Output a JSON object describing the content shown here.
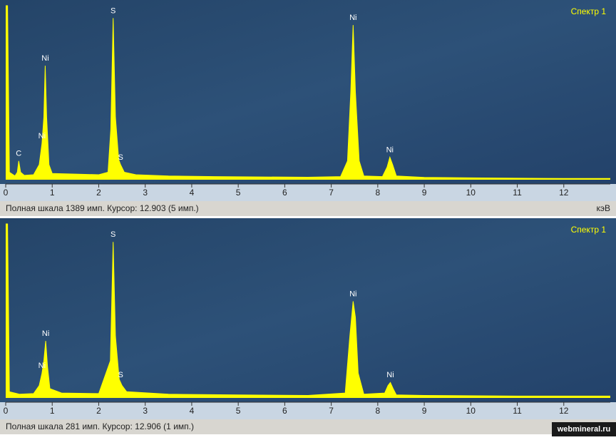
{
  "chart_data": [
    {
      "type": "area",
      "legend_label": "Спектр 1",
      "status": "Полная шкала 1389 имп. Курсор: 12.903  (5 имп.)",
      "xlabel": "кэВ",
      "color": "#ffff00",
      "x": [
        0,
        0.04,
        0.08,
        0.2,
        0.25,
        0.28,
        0.32,
        0.4,
        0.6,
        0.72,
        0.78,
        0.82,
        0.85,
        0.88,
        0.93,
        1.0,
        1.5,
        2.0,
        2.2,
        2.26,
        2.31,
        2.36,
        2.43,
        2.47,
        2.55,
        2.8,
        3.5,
        4.5,
        5.5,
        6.5,
        7.2,
        7.35,
        7.42,
        7.47,
        7.52,
        7.6,
        7.7,
        8.1,
        8.2,
        8.26,
        8.32,
        8.4,
        9,
        10,
        11,
        12,
        13
      ],
      "values": [
        1389,
        1389,
        60,
        30,
        60,
        150,
        60,
        35,
        40,
        120,
        290,
        500,
        910,
        500,
        120,
        50,
        45,
        40,
        60,
        400,
        1290,
        500,
        160,
        120,
        60,
        40,
        30,
        25,
        22,
        20,
        25,
        150,
        700,
        1235,
        700,
        150,
        30,
        25,
        100,
        180,
        120,
        30,
        18,
        15,
        12,
        10,
        10
      ],
      "annotations": [
        {
          "label": "C",
          "x": 0.28
        },
        {
          "label": "Ni",
          "x": 0.78
        },
        {
          "label": "Ni",
          "x": 0.85
        },
        {
          "label": "S",
          "x": 2.31
        },
        {
          "label": "S",
          "x": 2.47
        },
        {
          "label": "Ni",
          "x": 7.47
        },
        {
          "label": "Ni",
          "x": 8.26
        }
      ],
      "xlim": [
        0,
        13
      ],
      "ylim": [
        0,
        1389
      ],
      "xticks": [
        0,
        1,
        2,
        3,
        4,
        5,
        6,
        7,
        8,
        9,
        10,
        11,
        12
      ]
    },
    {
      "type": "area",
      "legend_label": "Спектр 1",
      "status": "Полная шкала 281 имп. Курсор: 12.906  (1 имп.)",
      "xlabel": "кэВ",
      "color": "#ffff00",
      "x": [
        0,
        0.04,
        0.08,
        0.3,
        0.6,
        0.72,
        0.78,
        0.82,
        0.86,
        0.9,
        0.95,
        1.2,
        2.0,
        2.25,
        2.31,
        2.36,
        2.44,
        2.5,
        2.6,
        3.5,
        5,
        6.5,
        7.3,
        7.4,
        7.47,
        7.52,
        7.58,
        7.7,
        8.15,
        8.22,
        8.27,
        8.33,
        8.4,
        9,
        11,
        13
      ],
      "values": [
        281,
        281,
        10,
        6,
        7,
        20,
        40,
        60,
        92,
        50,
        15,
        8,
        7,
        60,
        252,
        100,
        30,
        20,
        10,
        6,
        5,
        4,
        8,
        100,
        156,
        130,
        40,
        6,
        8,
        20,
        25,
        15,
        5,
        4,
        3,
        3
      ],
      "annotations": [
        {
          "label": "Ni",
          "x": 0.78
        },
        {
          "label": "Ni",
          "x": 0.86
        },
        {
          "label": "S",
          "x": 2.31
        },
        {
          "label": "S",
          "x": 2.47
        },
        {
          "label": "Ni",
          "x": 7.47
        },
        {
          "label": "Ni",
          "x": 8.27
        }
      ],
      "xlim": [
        0,
        13
      ],
      "ylim": [
        0,
        281
      ],
      "xticks": [
        0,
        1,
        2,
        3,
        4,
        5,
        6,
        7,
        8,
        9,
        10,
        11,
        12
      ]
    }
  ],
  "watermark": "webmineral.ru"
}
